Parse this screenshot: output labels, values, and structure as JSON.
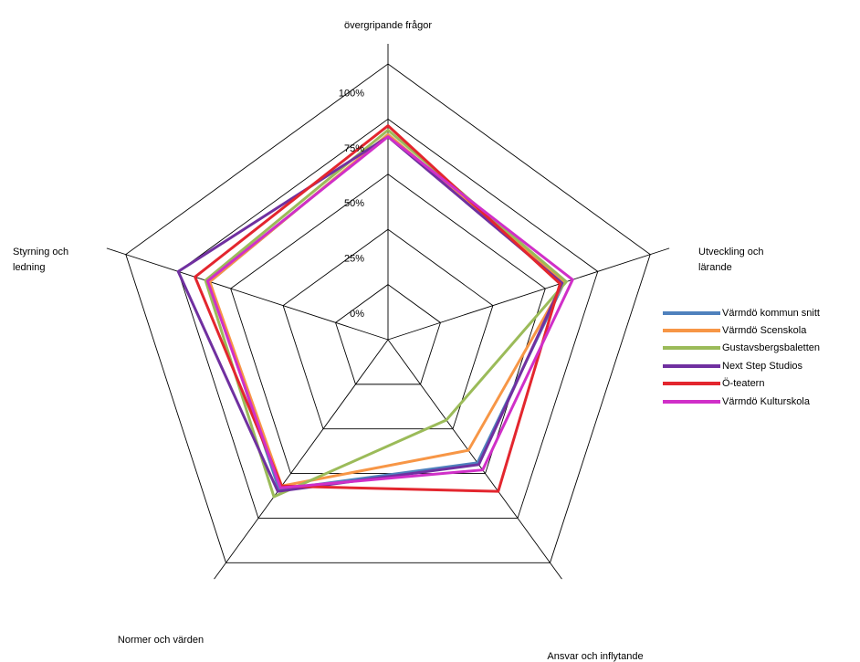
{
  "chart_data": {
    "type": "radar",
    "title": "",
    "axes": [
      "övergripande frågor",
      "Utveckling och lärande",
      "Ansvar och inflytande",
      "Normer och värden",
      "Styrning och ledning"
    ],
    "ticks": [
      "0%",
      "25%",
      "50%",
      "75%",
      "100%"
    ],
    "range": [
      0,
      1
    ],
    "grid": true,
    "legend_position": "right",
    "series": [
      {
        "name": "Värmdö kommun snitt",
        "color": "#4F81BD",
        "values": [
          0.93,
          0.84,
          0.69,
          0.84,
          0.85
        ]
      },
      {
        "name": "Värmdö Scenskola",
        "color": "#F79646",
        "values": [
          0.93,
          0.84,
          0.62,
          0.82,
          0.85
        ]
      },
      {
        "name": "Gustavsbergsbaletten",
        "color": "#9BBB59",
        "values": [
          0.95,
          0.85,
          0.45,
          0.88,
          0.87
        ]
      },
      {
        "name": "Next Step Studios",
        "color": "#7030A0",
        "values": [
          0.92,
          0.83,
          0.7,
          0.85,
          1.0
        ]
      },
      {
        "name": "Ö-teatern",
        "color": "#E3262E",
        "values": [
          0.97,
          0.82,
          0.85,
          0.82,
          0.92
        ]
      },
      {
        "name": "Värmdö Kulturskola",
        "color": "#D02FC8",
        "values": [
          0.92,
          0.88,
          0.73,
          0.83,
          0.86
        ]
      }
    ]
  }
}
